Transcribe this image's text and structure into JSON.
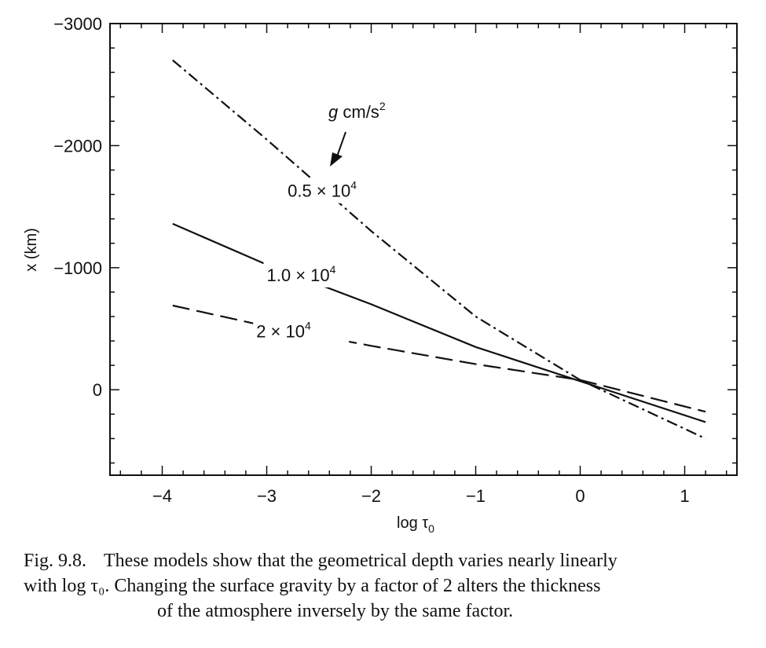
{
  "chart_data": {
    "type": "line",
    "xlabel": "log τ",
    "xlabel_subscript": "0",
    "ylabel": "x (km)",
    "xlim": [
      -4.5,
      1.5
    ],
    "ylim": [
      700,
      -3000
    ],
    "y_inverted": true,
    "x_ticks": [
      -4,
      -3,
      -2,
      -1,
      0,
      1
    ],
    "x_tick_labels": [
      "−4",
      "−3",
      "−2",
      "−1",
      "0",
      "1"
    ],
    "y_ticks": [
      -3000,
      -2000,
      -1000,
      0
    ],
    "y_tick_labels": [
      "−3000",
      "−2000",
      "−1000",
      "0"
    ],
    "grid": false,
    "series": [
      {
        "name": "0.5 × 10⁴",
        "name_base": "0.5 × 10",
        "name_exp": "4",
        "style": "dashdot",
        "x": [
          -3.9,
          -3.0,
          -2.0,
          -1.0,
          0.0,
          1.2
        ],
        "y": [
          -2700,
          -2050,
          -1300,
          -600,
          -80,
          400
        ]
      },
      {
        "name": "1.0 × 10⁴",
        "name_base": "1.0 × 10",
        "name_exp": "4",
        "style": "solid",
        "x": [
          -3.9,
          -3.0,
          -2.0,
          -1.0,
          0.0,
          1.2
        ],
        "y": [
          -1360,
          -1025,
          -700,
          -350,
          -70,
          265
        ]
      },
      {
        "name": "2 × 10⁴",
        "name_base": "2 × 10",
        "name_exp": "4",
        "style": "dashed",
        "x": [
          -3.9,
          -3.0,
          -2.0,
          -1.0,
          0.0,
          1.2
        ],
        "y": [
          -690,
          -520,
          -360,
          -210,
          -80,
          180
        ]
      }
    ],
    "annotations": [
      {
        "id": "gunit",
        "text": "g",
        "text2": " cm/s",
        "exp": "2"
      }
    ]
  },
  "caption": {
    "label": "Fig. 9.8.",
    "line1": "These models show that the geometrical depth varies nearly linearly",
    "line2": "with log τ₀. Changing the surface gravity by a factor of 2 alters the thickness",
    "line3": "of the atmosphere inversely by the same factor."
  }
}
